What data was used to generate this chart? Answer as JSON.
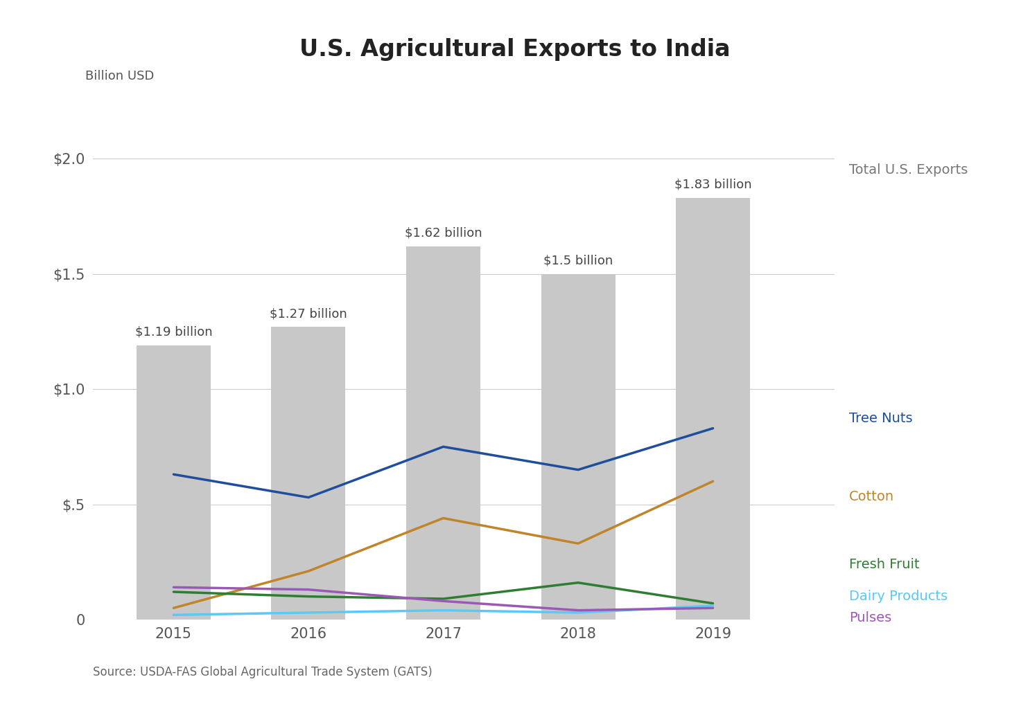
{
  "title": "U.S. Agricultural Exports to India",
  "ylabel": "Billion USD",
  "source": "Source: USDA-FAS Global Agricultural Trade System (GATS)",
  "years": [
    2015,
    2016,
    2017,
    2018,
    2019
  ],
  "bar_values": [
    1.19,
    1.27,
    1.62,
    1.5,
    1.83
  ],
  "bar_labels": [
    "$1.19 billion",
    "$1.27 billion",
    "$1.62 billion",
    "$1.5 billion",
    "$1.83 billion"
  ],
  "bar_color": "#c8c8c8",
  "bar_legend_label": "Total U.S. Exports",
  "lines": {
    "Tree Nuts": {
      "values": [
        0.63,
        0.53,
        0.75,
        0.65,
        0.83
      ],
      "color": "#1f4e9c",
      "linewidth": 2.5
    },
    "Cotton": {
      "values": [
        0.05,
        0.21,
        0.44,
        0.33,
        0.6
      ],
      "color": "#c0852a",
      "linewidth": 2.5
    },
    "Fresh Fruit": {
      "values": [
        0.12,
        0.1,
        0.09,
        0.16,
        0.07
      ],
      "color": "#2e7d32",
      "linewidth": 2.5
    },
    "Dairy Products": {
      "values": [
        0.02,
        0.03,
        0.04,
        0.03,
        0.06
      ],
      "color": "#5bc8f5",
      "linewidth": 2.5
    },
    "Pulses": {
      "values": [
        0.14,
        0.13,
        0.08,
        0.04,
        0.05
      ],
      "color": "#9b59b6",
      "linewidth": 2.5
    }
  },
  "ylim": [
    0,
    2.2
  ],
  "yticks": [
    0,
    0.5,
    1.0,
    1.5,
    2.0
  ],
  "ytick_labels": [
    "0",
    "$.5",
    "$1.0",
    "$1.5",
    "$2.0"
  ],
  "background_color": "#ffffff",
  "title_fontsize": 24,
  "label_fontsize": 13,
  "tick_fontsize": 15,
  "legend_fontsize": 14,
  "annotation_fontsize": 13
}
